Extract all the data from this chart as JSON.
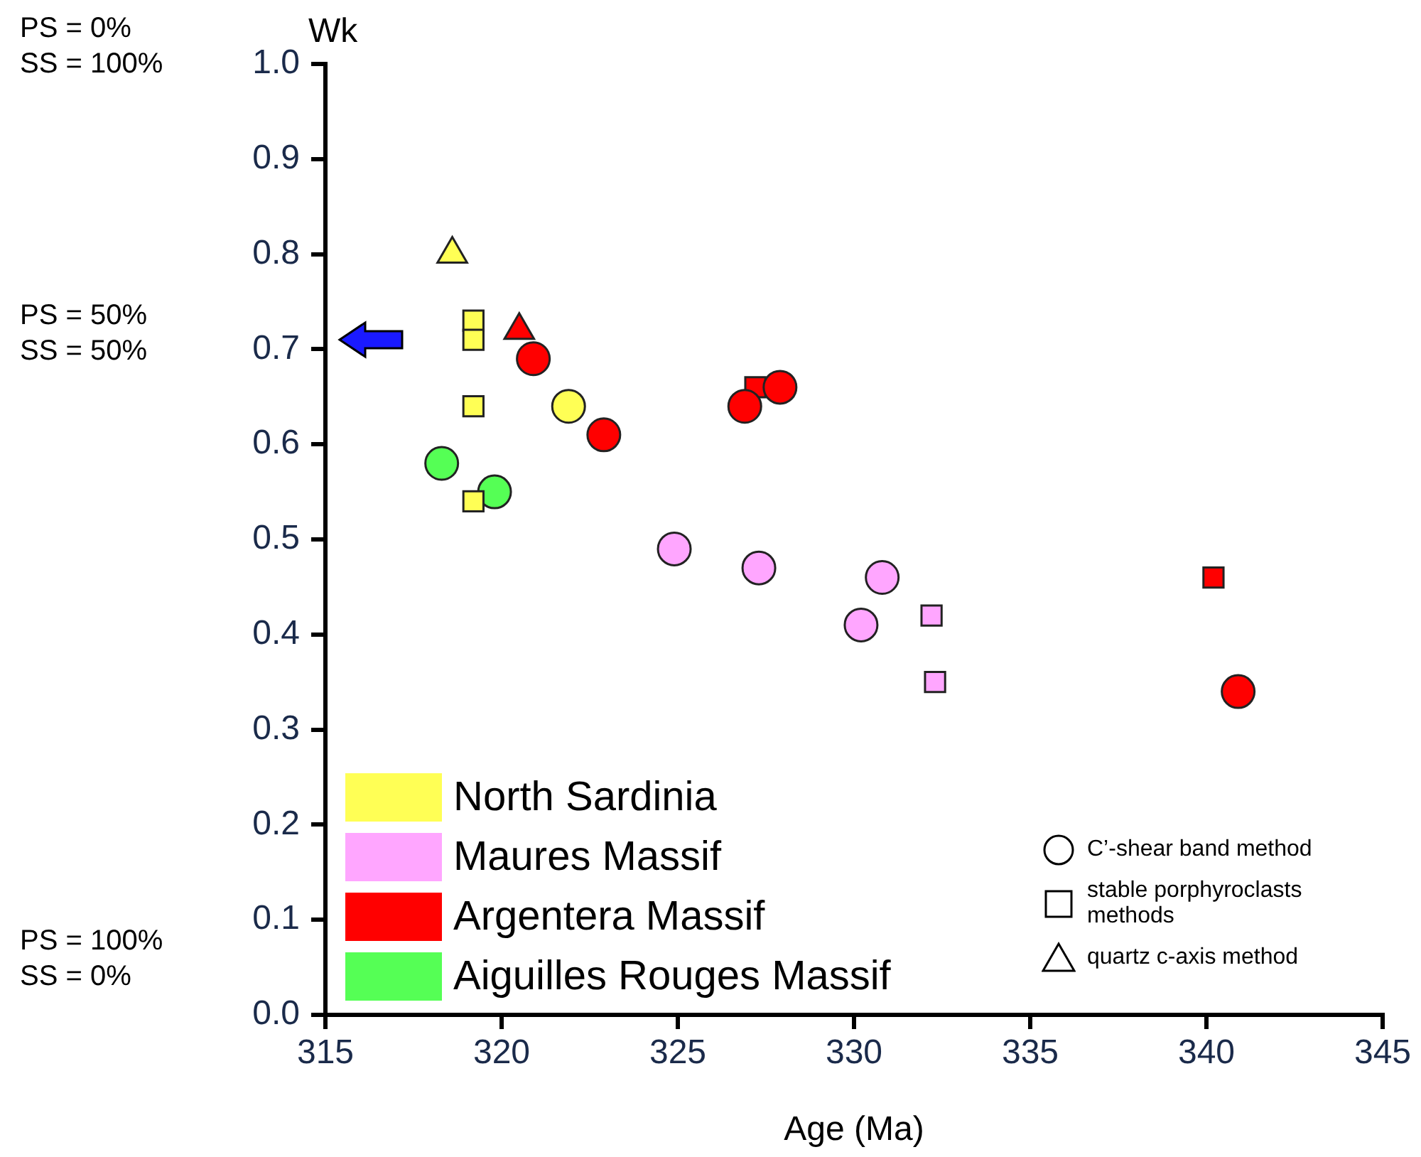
{
  "chart_data": {
    "type": "scatter",
    "xlabel": "Age (Ma)",
    "ylabel": "Wk",
    "xlim": [
      315,
      345
    ],
    "xticks": [
      315,
      320,
      325,
      330,
      335,
      340,
      345
    ],
    "ylim": [
      0,
      1
    ],
    "yticks": [
      {
        "value": 0,
        "label": "0.0"
      },
      {
        "value": 0.1,
        "label": "0.1"
      },
      {
        "value": 0.2,
        "label": "0.2"
      },
      {
        "value": 0.3,
        "label": "0.3"
      },
      {
        "value": 0.4,
        "label": "0.4"
      },
      {
        "value": 0.5,
        "label": "0.5"
      },
      {
        "value": 0.6,
        "label": "0.6"
      },
      {
        "value": 0.7,
        "label": "0.7"
      },
      {
        "value": 0.8,
        "label": "0.8"
      },
      {
        "value": 0.9,
        "label": "0.9"
      },
      {
        "value": 1.0,
        "label": "1.0"
      }
    ],
    "grid": false,
    "legend": "bottom left",
    "series": [
      {
        "name": "North Sardinia",
        "color": "#ffff55",
        "marker": "circle",
        "x": [
          321.9
        ],
        "values": [
          0.64
        ]
      },
      {
        "color": "#ffff55",
        "marker": "square",
        "x": [
          319.2,
          319.2,
          319.2,
          319.2
        ],
        "values": [
          0.73,
          0.71,
          0.64,
          0.54
        ]
      },
      {
        "color": "#ffff55",
        "marker": "triangle",
        "x": [
          318.6
        ],
        "values": [
          0.8
        ]
      },
      {
        "name": "Maures Massif",
        "color": "#ffa6ff",
        "marker": "circle",
        "x": [
          324.9,
          327.3,
          330.8,
          330.2
        ],
        "values": [
          0.49,
          0.47,
          0.46,
          0.41
        ]
      },
      {
        "color": "#ffa6ff",
        "marker": "square",
        "x": [
          332.2,
          332.3
        ],
        "values": [
          0.42,
          0.35
        ]
      },
      {
        "name": "Argentera Massif",
        "color": "#ff0000",
        "marker": "circle",
        "x": [
          320.9,
          322.9,
          326.9,
          327.9,
          340.9
        ],
        "values": [
          0.69,
          0.61,
          0.64,
          0.66,
          0.34
        ]
      },
      {
        "color": "#ff0000",
        "marker": "square",
        "x": [
          327.2,
          340.2
        ],
        "values": [
          0.66,
          0.46
        ]
      },
      {
        "color": "#ff0000",
        "marker": "triangle",
        "x": [
          320.5
        ],
        "values": [
          0.72
        ]
      },
      {
        "name": "Aiguilles Rouges Massif",
        "color": "#55ff55",
        "marker": "circle",
        "x": [
          318.3,
          319.8
        ],
        "values": [
          0.58,
          0.55
        ]
      }
    ],
    "annotations": [
      "PS = 0%\nSS = 100%",
      "PS = 50%\nSS = 50%",
      "PS = 100%\nSS = 0%",
      "C’-shear band method",
      "stable porphyroclasts\nmethods",
      "quartz c-axis method"
    ]
  }
}
